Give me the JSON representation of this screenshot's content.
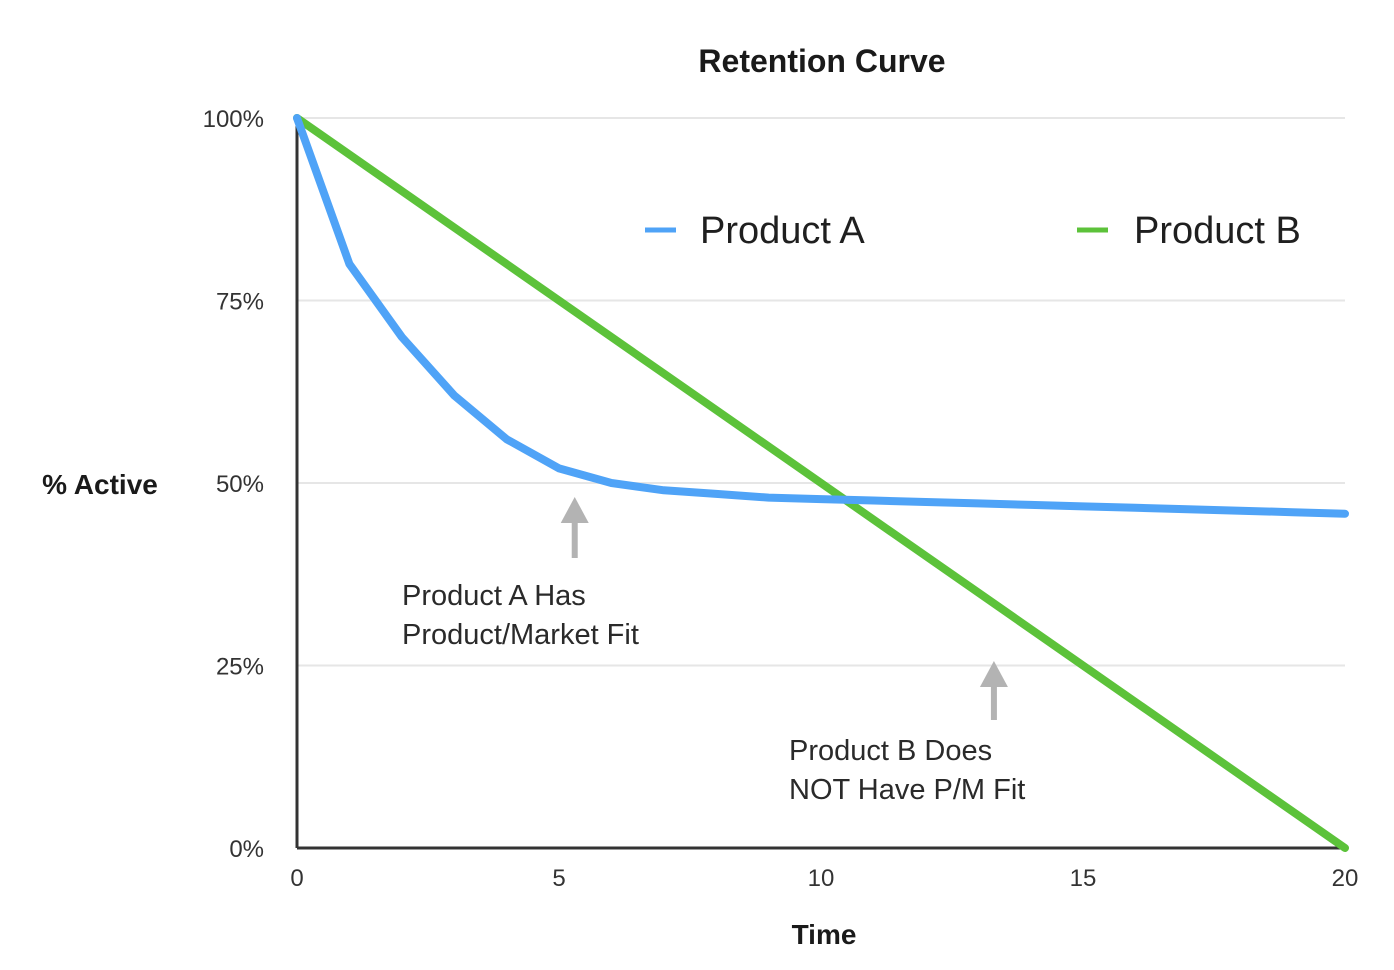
{
  "chart_data": {
    "type": "line",
    "title": "Retention Curve",
    "xlabel": "Time",
    "ylabel": "% Active",
    "xlim": [
      0,
      20
    ],
    "ylim": [
      0,
      100
    ],
    "x_ticks": [
      0,
      5,
      10,
      15,
      20
    ],
    "x_tick_labels": [
      "0",
      "5",
      "10",
      "15",
      "20"
    ],
    "y_ticks": [
      0,
      25,
      50,
      75,
      100
    ],
    "y_tick_labels": [
      "0%",
      "25%",
      "50%",
      "75%",
      "100%"
    ],
    "grid": "horizontal",
    "legend_position": "top-right",
    "series": [
      {
        "name": "Product A",
        "color": "#4fa3f7",
        "x": [
          0,
          1,
          2,
          3,
          4,
          5,
          6,
          7,
          8,
          9,
          10,
          11,
          12,
          13,
          14,
          15,
          16,
          17,
          18,
          19,
          20
        ],
        "values": [
          100,
          80,
          70,
          62,
          56,
          52,
          50,
          49,
          48.5,
          48,
          47.8,
          47.6,
          47.4,
          47.2,
          47,
          46.8,
          46.6,
          46.4,
          46.2,
          46,
          45.8
        ]
      },
      {
        "name": "Product B",
        "color": "#5cc23a",
        "x": [
          0,
          20
        ],
        "values": [
          100,
          0
        ]
      }
    ],
    "annotations": [
      {
        "lines": [
          "Product A Has",
          "Product/Market Fit"
        ],
        "arrow_x": 5.3,
        "arrow_y": 48
      },
      {
        "lines": [
          "Product B Does",
          "NOT Have P/M Fit"
        ],
        "arrow_x": 13.3,
        "arrow_y": 25
      }
    ],
    "colors": {
      "axis": "#333333",
      "grid": "#e6e6e6",
      "arrow": "#b3b3b3"
    }
  }
}
